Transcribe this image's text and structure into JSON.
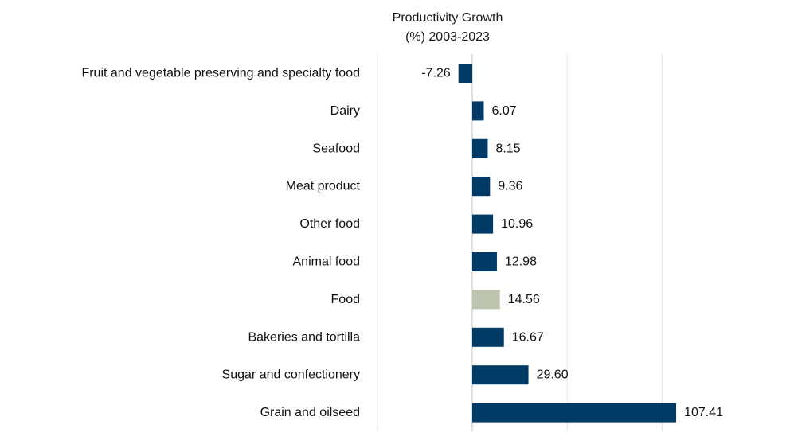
{
  "chart_data": {
    "type": "bar",
    "orientation": "horizontal",
    "title_lines": [
      "Productivity Growth",
      "(%) 2003-2023"
    ],
    "categories": [
      "Fruit and vegetable preserving and specialty food",
      "Dairy",
      "Seafood",
      "Meat product",
      "Other food",
      "Animal food",
      "Food",
      "Bakeries and tortilla",
      "Sugar and confectionery",
      "Grain and oilseed"
    ],
    "values": [
      -7.26,
      6.07,
      8.15,
      9.36,
      10.96,
      12.98,
      14.56,
      16.67,
      29.6,
      107.41
    ],
    "value_labels": [
      "-7.26",
      "6.07",
      "8.15",
      "9.36",
      "10.96",
      "12.98",
      "14.56",
      "16.67",
      "29.60",
      "107.41"
    ],
    "highlight_category": "Food",
    "xlim": [
      -50,
      100
    ],
    "gridlines": [
      -50,
      0,
      50,
      100
    ],
    "grid": true,
    "legend": "none",
    "colors": {
      "bar": "#003a66",
      "highlight": "#bcc4ad",
      "grid": "#e4e4e4",
      "axis": "#bfbfbf"
    }
  }
}
